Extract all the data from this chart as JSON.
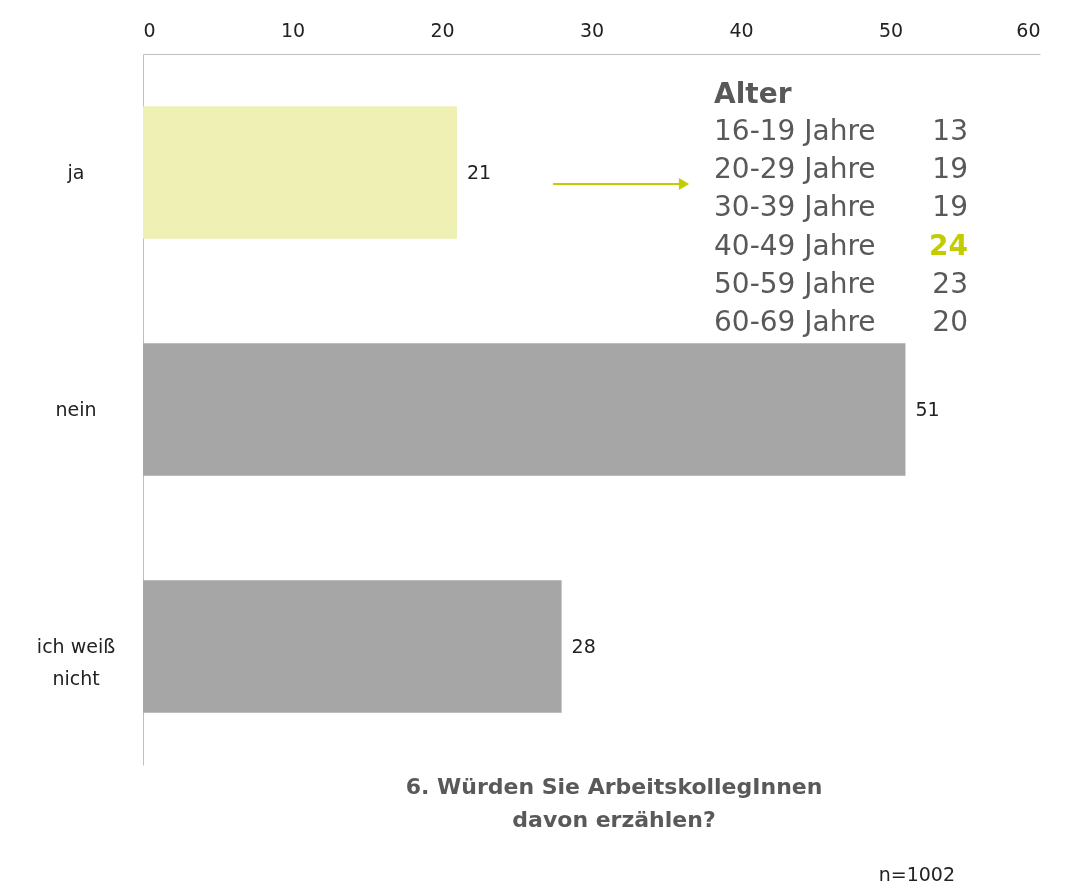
{
  "chart_data": {
    "type": "bar",
    "orientation": "horizontal",
    "title": "6. Würden Sie ArbeitskollegInnen davon erzählen?",
    "categories": [
      "ja",
      "nein",
      "ich weiß nicht"
    ],
    "values": [
      21,
      51,
      28
    ],
    "colors": [
      "#eff0b3",
      "#a6a6a6",
      "#a6a6a6"
    ],
    "xlim": [
      0,
      60
    ],
    "xticks": [
      0,
      10,
      20,
      30,
      40,
      50,
      60
    ],
    "data_labels": true,
    "grid": false,
    "legend": false,
    "annotations": [
      "Alter",
      "16-19 Jahre",
      "13",
      "20-29 Jahre",
      "19",
      "30-39 Jahre",
      "19",
      "40-49 Jahre",
      "24",
      "50-59 Jahre",
      "23",
      "60-69 Jahre",
      "20",
      "n=1002"
    ]
  }
}
